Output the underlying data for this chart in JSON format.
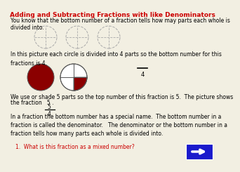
{
  "title": "Adding and Subtracting Fractions with like Denominators",
  "title_color": "#cc0000",
  "bg_color": "#f2efe2",
  "text_color": "#000000",
  "body_fontsize": 5.5,
  "para1": "You know that the bottom number of a fraction tells how may parts each whole is divided into.",
  "para2": "In this picture each circle is divided into 4 parts so the bottom number for this\nfractions is 4.",
  "para3_line1": "We use or shade 5 parts so the top number of this fraction is 5.  The picture shows",
  "para3_line2": "the fraction   5 .",
  "para4": "In a fraction the bottom number has a special name.  The bottom number in a\nfraction is called the denominator.   The denominator or the bottom number in a\nfraction tells how many parts each whole is divided into.",
  "question": "1.  What is this fraction as a mixed number?",
  "question_color": "#cc0000",
  "arrow_color": "#1a1acc",
  "dark_red": "#8b0000",
  "circle_edge": "#555555"
}
